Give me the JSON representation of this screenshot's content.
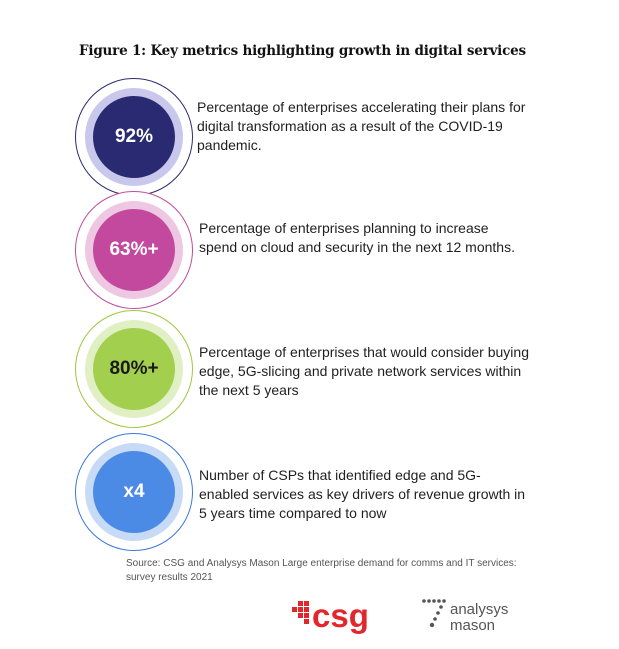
{
  "title": "Figure 1: Key metrics highlighting growth in digital services",
  "metrics": [
    {
      "value": "92%",
      "text": "Percentage of enterprises accelerating  their plans for digital transformation as a result of the COVID-19 pandemic.",
      "ring": "#2d2a6e",
      "halo": "#c9c8ec",
      "core": "#2a2a72",
      "text_color": "#ffffff"
    },
    {
      "value": "63%+",
      "text": "Percentage of enterprises planning to increase spend on cloud and security in the next 12 months.",
      "ring": "#c04d9c",
      "halo": "#eec8e2",
      "core": "#c3499e",
      "text_color": "#ffffff"
    },
    {
      "value": "80%+",
      "text": "Percentage of enterprises that would consider buying edge, 5G-slicing and private network services  within the next 5 years",
      "ring": "#9cc93b",
      "halo": "#e1f0c4",
      "core": "#a3cf4e",
      "text_color": "#1a1a1a"
    },
    {
      "value": "x4",
      "text": "Number of CSPs that identified edge and 5G-enabled services  as key drivers of revenue growth in 5 years time compared to now",
      "ring": "#3b78d8",
      "halo": "#c7dbf7",
      "core": "#4b8be6",
      "text_color": "#ffffff"
    }
  ],
  "source": "Source: CSG and Analysys Mason Large enterprise demand for comms and IT services: survey results 2021",
  "logos": {
    "csg": "csg",
    "analysys_line1": "analysys",
    "analysys_line2": "mason",
    "csg_color": "#e3262c"
  }
}
